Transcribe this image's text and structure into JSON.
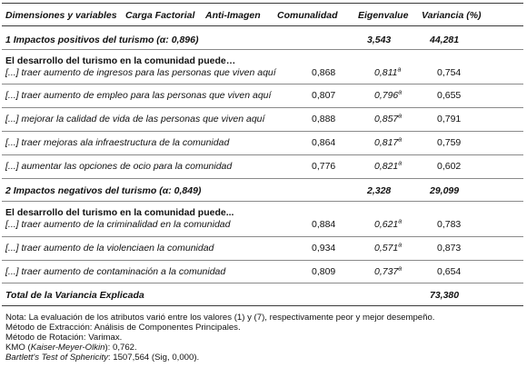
{
  "headers": {
    "dimensions": "Dimensiones y variables",
    "factor_loading": "Carga Factorial",
    "anti_image": "Anti-Imagen",
    "communality": "Comunalidad",
    "eigenvalue": "Eigenvalue",
    "variance": "Variancia (%)"
  },
  "section1": {
    "title": "1 Impactos positivos del turismo (α: 0,896)",
    "eigenvalue": "3,543",
    "variance": "44,281",
    "subtitle": "El desarrollo del turismo en la comunidad puede…",
    "rows": [
      {
        "label": "[...] traer aumento de ingresos para las personas que viven aquí",
        "loading": "0,868",
        "anti_image": "0,811",
        "sup": "a",
        "communality": "0,754"
      },
      {
        "label": "[...] traer aumento de empleo para las personas que viven aquí",
        "loading": "0,807",
        "anti_image": "0,796",
        "sup": "a",
        "communality": "0,655"
      },
      {
        "label": "[...] mejorar la calidad de vida de las personas que viven aquí",
        "loading": "0,888",
        "anti_image": "0,857",
        "sup": "a",
        "communality": "0,791"
      },
      {
        "label": "[...] traer mejoras ala infraestructura de la comunidad",
        "loading": "0,864",
        "anti_image": "0,817",
        "sup": "a",
        "communality": "0,759"
      },
      {
        "label": "[...] aumentar las opciones de ocio para la comunidad",
        "loading": "0,776",
        "anti_image": "0,821",
        "sup": "a",
        "communality": "0,602"
      }
    ]
  },
  "section2": {
    "title": "2 Impactos negativos del turismo (α: 0,849)",
    "eigenvalue": "2,328",
    "variance": "29,099",
    "subtitle": "El desarrollo del turismo en la comunidad puede...",
    "rows": [
      {
        "label": "[...] traer aumento de la criminalidad en la comunidad",
        "loading": "0,884",
        "anti_image": "0,621",
        "sup": "a",
        "communality": "0,783"
      },
      {
        "label": "[...] traer aumento de la violenciaen la comunidad",
        "loading": "0,934",
        "anti_image": "0,571",
        "sup": "a",
        "communality": "0,873"
      },
      {
        "label": "[...] traer aumento de contaminación a la comunidad",
        "loading": "0,809",
        "anti_image": "0,737",
        "sup": "a",
        "communality": "0,654"
      }
    ]
  },
  "total": {
    "label": "Total de la Variancia Explicada",
    "value": "73,380"
  },
  "notes": {
    "line1": "Nota: La evaluación de los atributos varió entre los valores (1) y (7), respectivamente peor y mejor desempeño.",
    "line2": "Método de Extracción: Análisis de Componentes Principales.",
    "line3": "Método de Rotación: Varimax.",
    "kmo_pre": "KMO (",
    "kmo_italic": "Kaiser-Meyer-Olkin",
    "kmo_post": "): 0,762.",
    "bartlett_italic": "Bartlett's Test of Sphericity",
    "bartlett_post": ": 1507,564 (Sig, 0,000)."
  }
}
